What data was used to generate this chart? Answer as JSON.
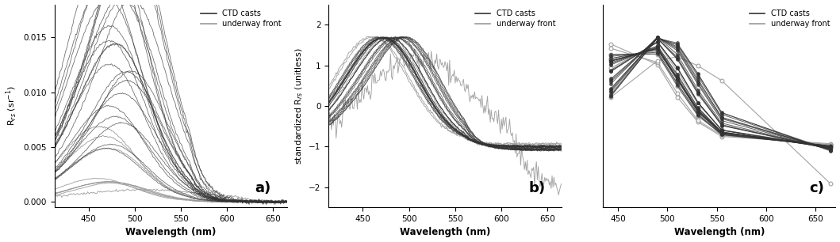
{
  "wavelength_range": [
    410,
    665
  ],
  "panel_a": {
    "ylabel": "R$_{rs}$ (sr$^{-1}$)",
    "xlabel": "Wavelength (nm)",
    "label": "a)",
    "ylim": [
      -0.0005,
      0.018
    ],
    "yticks": [
      0.0,
      0.005,
      0.01,
      0.015
    ],
    "xticks": [
      450,
      500,
      550,
      600,
      650
    ]
  },
  "panel_b": {
    "ylabel": "standardized R$_{rs}$ (unitless)",
    "xlabel": "Wavelength (nm)",
    "label": "b)",
    "ylim": [
      -2.5,
      2.5
    ],
    "yticks": [
      -2,
      -1,
      0,
      1,
      2
    ],
    "xticks": [
      450,
      500,
      550,
      600,
      650
    ]
  },
  "panel_c": {
    "xlabel": "Wavelength (nm)",
    "label": "c)",
    "ylim": [
      -2.5,
      2.5
    ],
    "xticks": [
      450,
      500,
      550,
      600,
      650
    ],
    "bands": [
      443,
      490,
      510,
      531,
      555,
      665
    ]
  },
  "ctd_color": "#333333",
  "underway_color": "#999999",
  "bg_color": "#ffffff",
  "n_ctd": 24,
  "n_underway": 9
}
